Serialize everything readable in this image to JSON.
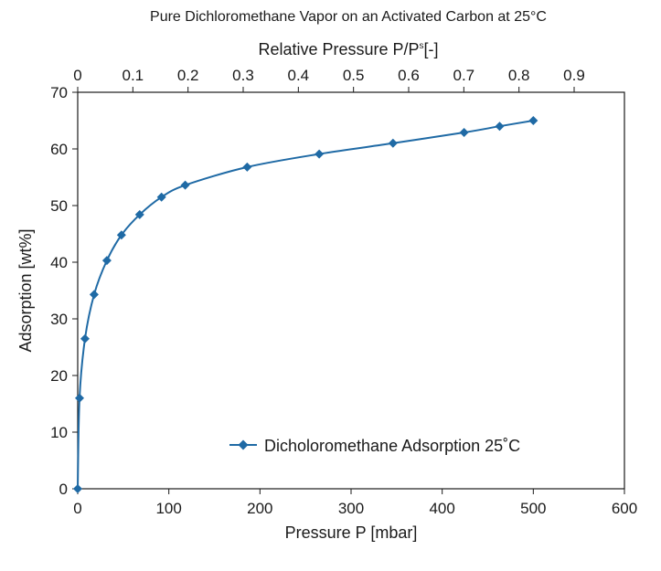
{
  "chart_data": {
    "type": "line",
    "title": "Pure Dichloromethane Vapor on an Activated Carbon at 25°C",
    "xlabel": "Pressure P [mbar]",
    "ylabel": "Adsorption [wt%]",
    "x2label": "Relative Pressure P/P",
    "x2label_sup": "s",
    "x2label_unit": "[-]",
    "xlim": [
      0,
      600
    ],
    "ylim": [
      0,
      70
    ],
    "x2lim": [
      0,
      1.0
    ],
    "x_ticks": [
      "0",
      "100",
      "200",
      "300",
      "400",
      "500",
      "600"
    ],
    "x_tick_values": [
      0,
      100,
      200,
      300,
      400,
      500,
      600
    ],
    "y_ticks": [
      "0",
      "10",
      "20",
      "30",
      "40",
      "50",
      "60",
      "70"
    ],
    "y_tick_values": [
      0,
      10,
      20,
      30,
      40,
      50,
      60,
      70
    ],
    "x2_ticks": [
      "0",
      "0.1",
      "0.2",
      "0.3",
      "0.4",
      "0.5",
      "0.6",
      "0.7",
      "0.8",
      "0.9"
    ],
    "x2_tick_values": [
      0,
      0.1,
      0.2,
      0.3,
      0.4,
      0.5,
      0.6,
      0.7,
      0.8,
      0.9
    ],
    "grid": false,
    "legend_position": "bottom-right",
    "series": [
      {
        "name": "Dicholoromethane Adsorption 25˚C",
        "color": "#1f6aa5",
        "marker": "diamond",
        "x": [
          0,
          2,
          8,
          18,
          32,
          48,
          68,
          92,
          118,
          186,
          265,
          346,
          424,
          463,
          500
        ],
        "y": [
          0,
          16,
          26.5,
          34.3,
          40.3,
          44.8,
          48.4,
          51.5,
          53.6,
          56.8,
          59.1,
          61.0,
          62.9,
          64.0,
          65.0
        ]
      }
    ]
  }
}
